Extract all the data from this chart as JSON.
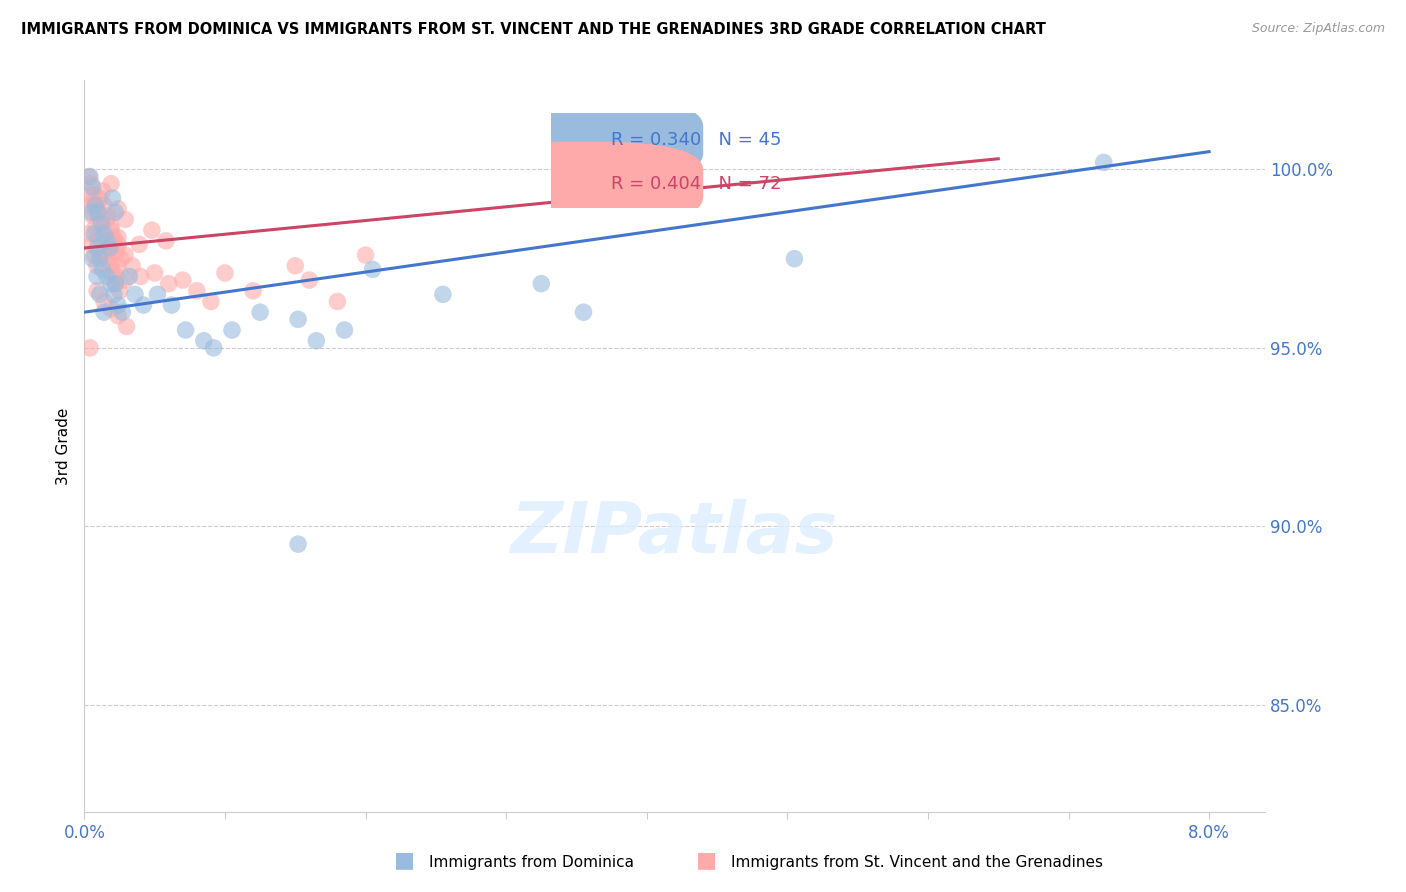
{
  "title": "IMMIGRANTS FROM DOMINICA VS IMMIGRANTS FROM ST. VINCENT AND THE GRENADINES 3RD GRADE CORRELATION CHART",
  "source": "Source: ZipAtlas.com",
  "ylabel": "3rd Grade",
  "xlim": [
    0.0,
    8.4
  ],
  "ylim": [
    82.0,
    102.5
  ],
  "yticks": [
    85.0,
    90.0,
    95.0,
    100.0
  ],
  "ytick_labels": [
    "85.0%",
    "90.0%",
    "95.0%",
    "100.0%"
  ],
  "xtick_left_label": "0.0%",
  "xtick_right_label": "8.0%",
  "blue_R": 0.34,
  "blue_N": 45,
  "pink_R": 0.404,
  "pink_N": 72,
  "blue_color": "#99bbdd",
  "pink_color": "#ffaaaa",
  "blue_line_color": "#4477cc",
  "pink_line_color": "#cc4466",
  "legend_label_blue": "Immigrants from Dominica",
  "legend_label_pink": "Immigrants from St. Vincent and the Grenadines",
  "blue_trend": [
    0.0,
    96.0,
    8.0,
    100.5
  ],
  "pink_trend": [
    0.0,
    97.8,
    6.5,
    100.3
  ],
  "blue_scatter_x": [
    0.04,
    0.06,
    0.08,
    0.1,
    0.12,
    0.14,
    0.16,
    0.18,
    0.2,
    0.22,
    0.05,
    0.07,
    0.09,
    0.11,
    0.13,
    0.16,
    0.19,
    0.21,
    0.24,
    0.27,
    0.06,
    0.09,
    0.11,
    0.14,
    0.22,
    0.32,
    0.36,
    0.42,
    0.52,
    0.62,
    0.72,
    0.85,
    0.92,
    1.05,
    1.25,
    1.52,
    1.65,
    1.85,
    2.05,
    2.55,
    3.25,
    3.55,
    1.52,
    7.25,
    5.05
  ],
  "blue_scatter_y": [
    99.8,
    99.5,
    99.0,
    98.8,
    98.5,
    98.2,
    98.0,
    97.8,
    99.2,
    98.8,
    98.8,
    98.2,
    97.8,
    97.5,
    97.2,
    97.0,
    96.8,
    96.5,
    96.2,
    96.0,
    97.5,
    97.0,
    96.5,
    96.0,
    96.8,
    97.0,
    96.5,
    96.2,
    96.5,
    96.2,
    95.5,
    95.2,
    95.0,
    95.5,
    96.0,
    95.8,
    95.2,
    95.5,
    97.2,
    96.5,
    96.8,
    96.0,
    89.5,
    100.2,
    97.5
  ],
  "pink_scatter_x": [
    0.03,
    0.05,
    0.07,
    0.09,
    0.11,
    0.14,
    0.17,
    0.19,
    0.21,
    0.24,
    0.04,
    0.06,
    0.08,
    0.1,
    0.13,
    0.16,
    0.19,
    0.21,
    0.23,
    0.26,
    0.03,
    0.05,
    0.07,
    0.09,
    0.12,
    0.15,
    0.18,
    0.2,
    0.22,
    0.25,
    0.04,
    0.07,
    0.1,
    0.13,
    0.16,
    0.2,
    0.24,
    0.29,
    0.34,
    0.4,
    0.5,
    0.6,
    0.7,
    0.8,
    0.9,
    1.0,
    1.2,
    1.5,
    1.6,
    1.8,
    2.0,
    0.29,
    0.39,
    0.19,
    0.24,
    0.48,
    0.58,
    0.13,
    0.19,
    0.23,
    0.09,
    0.14,
    0.19,
    0.24,
    0.3,
    0.07,
    0.09,
    0.13,
    0.19,
    0.24,
    0.29,
    0.04
  ],
  "pink_scatter_y": [
    99.8,
    99.6,
    99.3,
    99.0,
    99.2,
    99.0,
    98.7,
    98.4,
    98.1,
    97.9,
    99.0,
    98.7,
    98.4,
    98.1,
    99.4,
    98.6,
    98.3,
    98.0,
    97.7,
    97.5,
    98.2,
    97.9,
    97.6,
    97.3,
    98.0,
    97.7,
    97.4,
    97.1,
    96.8,
    96.6,
    99.3,
    99.0,
    98.7,
    98.4,
    97.6,
    97.9,
    98.1,
    97.6,
    97.3,
    97.0,
    97.1,
    96.8,
    96.9,
    96.6,
    96.3,
    97.1,
    96.6,
    97.3,
    96.9,
    96.3,
    97.6,
    98.6,
    97.9,
    99.6,
    98.9,
    98.3,
    98.0,
    97.6,
    97.3,
    97.0,
    96.6,
    96.3,
    96.1,
    95.9,
    95.6,
    99.1,
    98.8,
    98.5,
    97.9,
    97.3,
    96.9,
    95.0
  ]
}
